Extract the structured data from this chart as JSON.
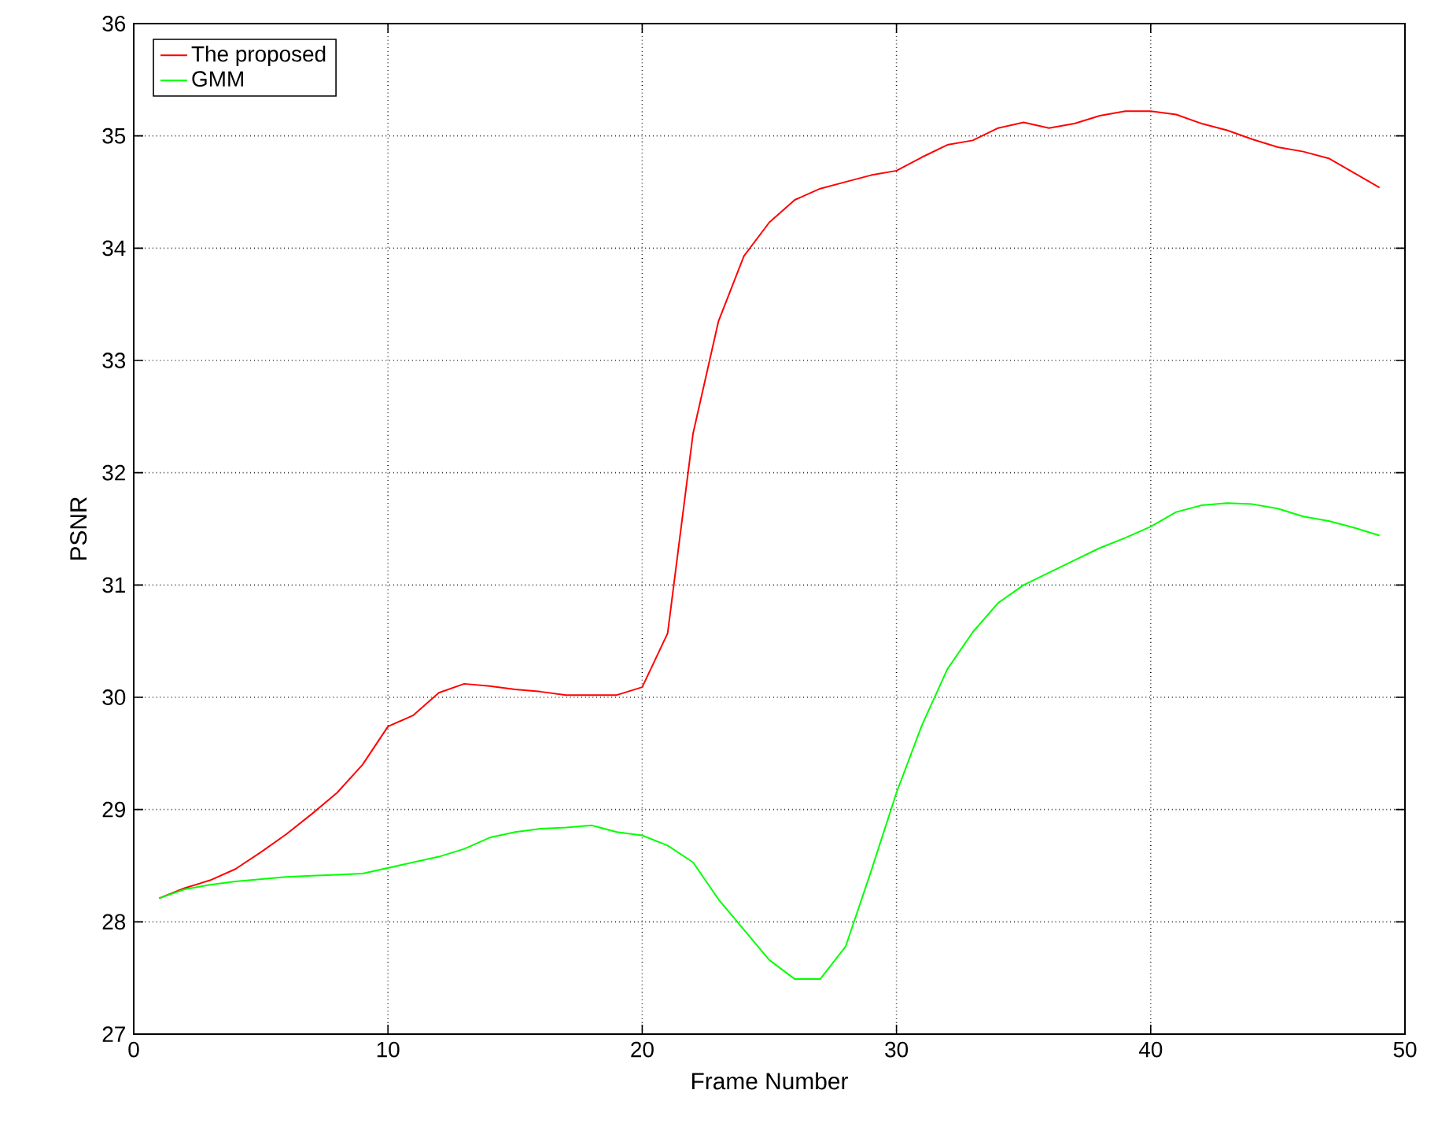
{
  "chart_data": {
    "type": "line",
    "xlabel": "Frame Number",
    "ylabel": "PSNR",
    "x": [
      1,
      2,
      3,
      4,
      5,
      6,
      7,
      8,
      9,
      10,
      11,
      12,
      13,
      14,
      15,
      16,
      17,
      18,
      19,
      20,
      21,
      22,
      23,
      24,
      25,
      26,
      27,
      28,
      29,
      30,
      31,
      32,
      33,
      34,
      35,
      36,
      37,
      38,
      39,
      40,
      41,
      42,
      43,
      44,
      45,
      46,
      47,
      48,
      49
    ],
    "series": [
      {
        "name": "The proposed",
        "color": "#ff0000",
        "values": [
          28.21,
          28.3,
          28.37,
          28.47,
          28.62,
          28.78,
          28.96,
          29.15,
          29.4,
          29.74,
          29.84,
          30.04,
          30.12,
          30.1,
          30.07,
          30.05,
          30.02,
          30.02,
          30.02,
          30.09,
          30.57,
          32.35,
          33.35,
          33.93,
          34.23,
          34.43,
          34.53,
          34.59,
          34.65,
          34.69,
          34.81,
          34.92,
          34.96,
          35.07,
          35.12,
          35.07,
          35.11,
          35.18,
          35.22,
          35.22,
          35.19,
          35.11,
          35.05,
          34.97,
          34.9,
          34.86,
          34.8,
          34.67,
          34.54
        ]
      },
      {
        "name": "GMM",
        "color": "#00ff00",
        "values": [
          28.21,
          28.29,
          28.33,
          28.36,
          28.38,
          28.4,
          28.41,
          28.42,
          28.43,
          28.48,
          28.53,
          28.58,
          28.65,
          28.75,
          28.8,
          28.83,
          28.84,
          28.86,
          28.8,
          28.77,
          28.68,
          28.53,
          28.2,
          27.93,
          27.66,
          27.49,
          27.49,
          27.78,
          28.45,
          29.15,
          29.75,
          30.25,
          30.58,
          30.84,
          31.0,
          31.11,
          31.22,
          31.33,
          31.42,
          31.52,
          31.65,
          31.71,
          31.73,
          31.72,
          31.68,
          31.61,
          31.57,
          31.51,
          31.44
        ]
      }
    ],
    "xlim": [
      0,
      50
    ],
    "ylim": [
      27,
      36
    ],
    "xticks": [
      0,
      10,
      20,
      30,
      40,
      50
    ],
    "yticks": [
      27,
      28,
      29,
      30,
      31,
      32,
      33,
      34,
      35,
      36
    ],
    "grid": true,
    "legend": "top left",
    "marker": "none",
    "line_style": "solid"
  }
}
